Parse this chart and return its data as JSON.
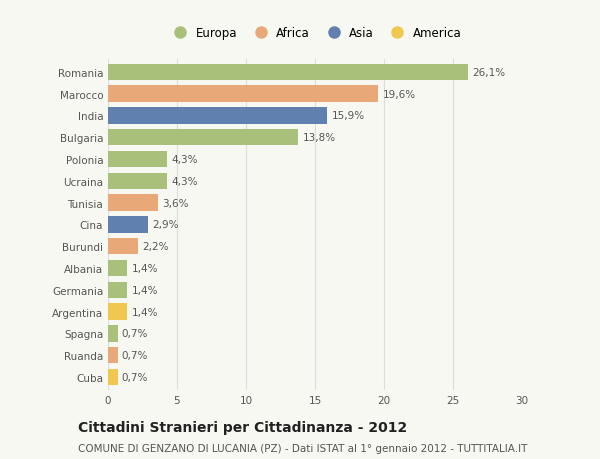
{
  "countries": [
    "Romania",
    "Marocco",
    "India",
    "Bulgaria",
    "Polonia",
    "Ucraina",
    "Tunisia",
    "Cina",
    "Burundi",
    "Albania",
    "Germania",
    "Argentina",
    "Spagna",
    "Ruanda",
    "Cuba"
  ],
  "values": [
    26.1,
    19.6,
    15.9,
    13.8,
    4.3,
    4.3,
    3.6,
    2.9,
    2.2,
    1.4,
    1.4,
    1.4,
    0.7,
    0.7,
    0.7
  ],
  "labels": [
    "26,1%",
    "19,6%",
    "15,9%",
    "13,8%",
    "4,3%",
    "4,3%",
    "3,6%",
    "2,9%",
    "2,2%",
    "1,4%",
    "1,4%",
    "1,4%",
    "0,7%",
    "0,7%",
    "0,7%"
  ],
  "continents": [
    "Europa",
    "Africa",
    "Asia",
    "Europa",
    "Europa",
    "Europa",
    "Africa",
    "Asia",
    "Africa",
    "Europa",
    "Europa",
    "America",
    "Europa",
    "Africa",
    "America"
  ],
  "colors": {
    "Europa": "#a8c07a",
    "Africa": "#e8a878",
    "Asia": "#6080b0",
    "America": "#f0c850"
  },
  "xlim": [
    0,
    30
  ],
  "xticks": [
    0,
    5,
    10,
    15,
    20,
    25,
    30
  ],
  "title": "Cittadini Stranieri per Cittadinanza - 2012",
  "subtitle": "COMUNE DI GENZANO DI LUCANIA (PZ) - Dati ISTAT al 1° gennaio 2012 - TUTTITALIA.IT",
  "bg_color": "#f8f8f2",
  "plot_bg_color": "#f8f8f2",
  "grid_color": "#dddddd",
  "bar_height": 0.75,
  "title_fontsize": 10,
  "subtitle_fontsize": 7.5,
  "label_fontsize": 7.5,
  "tick_fontsize": 7.5,
  "legend_fontsize": 8.5,
  "text_color": "#555555",
  "title_color": "#222222"
}
